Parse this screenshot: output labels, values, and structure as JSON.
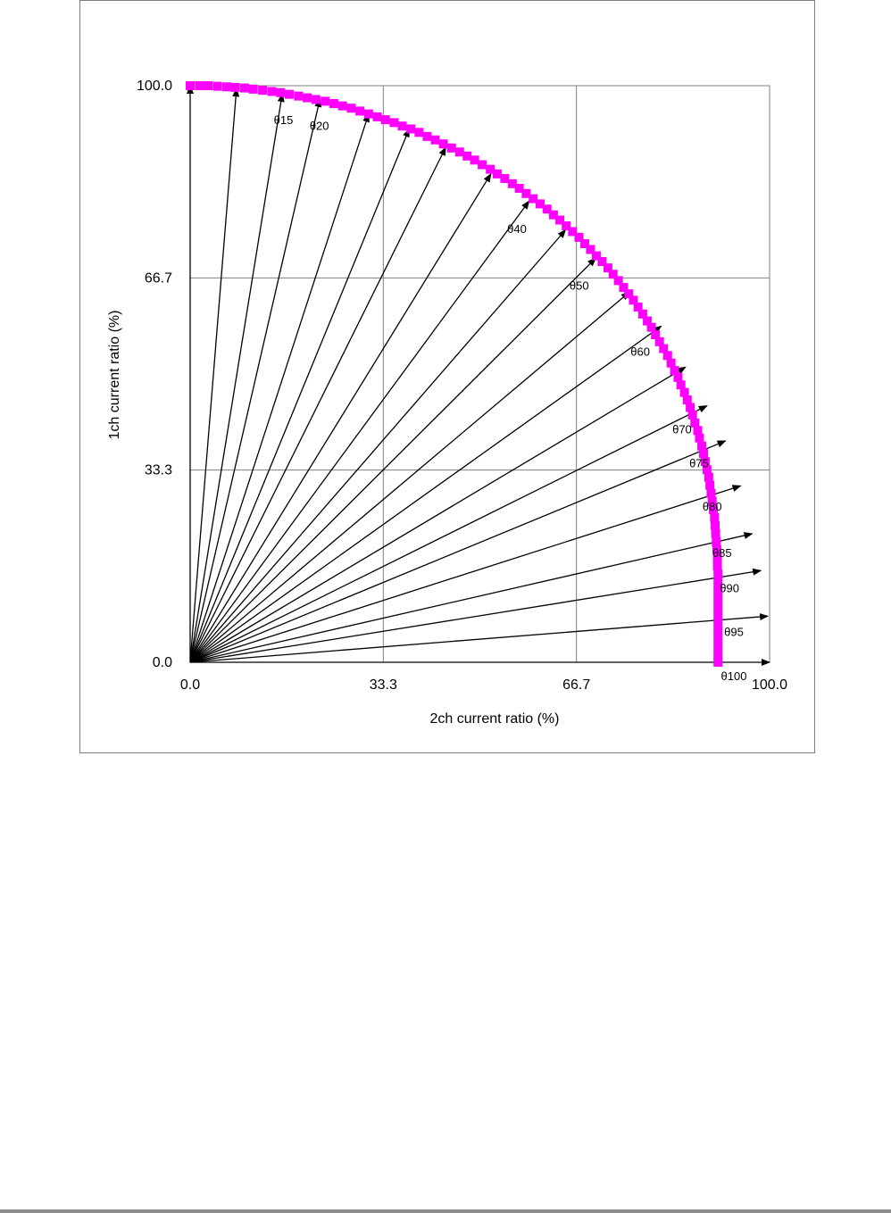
{
  "chart_data": {
    "type": "scatter",
    "xlabel": "2ch current ratio (%)",
    "ylabel": "1ch current ratio (%)",
    "xlim": [
      0,
      100
    ],
    "ylim": [
      0,
      100
    ],
    "xticks": [
      "0.0",
      "33.3",
      "66.7",
      "100.0"
    ],
    "yticks": [
      "0.0",
      "33.3",
      "66.7",
      "100.0"
    ],
    "grid": true,
    "marker_color": "#ff00ff",
    "arrow_color": "#000000",
    "series": [
      {
        "values": [
          [
            0.0,
            100.0
          ],
          [
            1.6,
            100.0
          ],
          [
            3.1,
            100.0
          ],
          [
            4.7,
            99.9
          ],
          [
            6.3,
            99.8
          ],
          [
            7.8,
            99.7
          ],
          [
            9.4,
            99.6
          ],
          [
            10.9,
            99.4
          ],
          [
            12.5,
            99.2
          ],
          [
            14.1,
            99.0
          ],
          [
            15.6,
            98.8
          ],
          [
            17.1,
            98.5
          ],
          [
            18.7,
            98.2
          ],
          [
            20.2,
            97.9
          ],
          [
            21.7,
            97.6
          ],
          [
            23.3,
            97.3
          ],
          [
            24.8,
            96.9
          ],
          [
            26.3,
            96.5
          ],
          [
            27.8,
            96.1
          ],
          [
            29.3,
            95.6
          ],
          [
            30.8,
            95.1
          ],
          [
            32.3,
            94.6
          ],
          [
            33.7,
            94.1
          ],
          [
            35.2,
            93.6
          ],
          [
            36.6,
            93.0
          ],
          [
            38.1,
            92.5
          ],
          [
            39.5,
            91.9
          ],
          [
            40.9,
            91.2
          ],
          [
            42.3,
            90.6
          ],
          [
            43.7,
            89.9
          ],
          [
            45.1,
            89.2
          ],
          [
            46.5,
            88.5
          ],
          [
            47.8,
            87.8
          ],
          [
            49.1,
            87.1
          ],
          [
            50.4,
            86.3
          ],
          [
            51.8,
            85.5
          ],
          [
            53.0,
            84.7
          ],
          [
            54.3,
            83.9
          ],
          [
            55.6,
            83.0
          ],
          [
            56.8,
            82.2
          ],
          [
            58.0,
            81.3
          ],
          [
            59.2,
            80.4
          ],
          [
            60.4,
            79.5
          ],
          [
            61.6,
            78.6
          ],
          [
            62.7,
            77.6
          ],
          [
            63.8,
            76.7
          ],
          [
            64.9,
            75.7
          ],
          [
            66.0,
            74.7
          ],
          [
            67.1,
            73.7
          ],
          [
            68.1,
            72.6
          ],
          [
            69.1,
            71.6
          ],
          [
            70.1,
            70.5
          ],
          [
            71.1,
            69.5
          ],
          [
            72.1,
            68.4
          ],
          [
            73.0,
            67.3
          ],
          [
            73.9,
            66.2
          ],
          [
            74.8,
            65.0
          ],
          [
            75.7,
            63.9
          ],
          [
            76.5,
            62.8
          ],
          [
            77.3,
            61.6
          ],
          [
            78.1,
            60.4
          ],
          [
            78.9,
            59.2
          ],
          [
            79.6,
            58.1
          ],
          [
            80.3,
            56.8
          ],
          [
            81.0,
            55.6
          ],
          [
            81.7,
            54.4
          ],
          [
            82.4,
            53.2
          ],
          [
            83.0,
            51.9
          ],
          [
            83.6,
            50.6
          ],
          [
            84.2,
            49.4
          ],
          [
            84.7,
            48.1
          ],
          [
            85.3,
            46.8
          ],
          [
            85.8,
            45.5
          ],
          [
            86.3,
            44.2
          ],
          [
            86.7,
            42.9
          ],
          [
            87.1,
            41.5
          ],
          [
            87.6,
            40.2
          ],
          [
            87.9,
            38.9
          ],
          [
            88.3,
            37.5
          ],
          [
            88.6,
            36.2
          ],
          [
            88.9,
            34.8
          ],
          [
            89.2,
            33.4
          ],
          [
            89.5,
            32.1
          ],
          [
            89.7,
            30.7
          ],
          [
            89.9,
            29.3
          ],
          [
            90.1,
            27.9
          ],
          [
            90.3,
            26.5
          ],
          [
            90.5,
            25.1
          ],
          [
            90.6,
            23.7
          ],
          [
            90.7,
            22.3
          ],
          [
            90.8,
            20.9
          ],
          [
            90.9,
            19.5
          ],
          [
            91.0,
            18.1
          ],
          [
            91.0,
            16.7
          ],
          [
            91.1,
            15.3
          ],
          [
            91.1,
            13.9
          ],
          [
            91.1,
            12.5
          ],
          [
            91.1,
            11.1
          ],
          [
            91.1,
            9.7
          ],
          [
            91.1,
            8.3
          ],
          [
            91.1,
            6.9
          ],
          [
            91.1,
            5.5
          ],
          [
            91.1,
            4.1
          ],
          [
            91.1,
            2.7
          ],
          [
            91.1,
            1.3
          ],
          [
            91.1,
            0.0
          ]
        ]
      }
    ],
    "arrows": [
      {
        "x": 0.0,
        "y": 100.0,
        "label": ""
      },
      {
        "x": 8.0,
        "y": 99.5,
        "label": ""
      },
      {
        "x": 15.9,
        "y": 98.6,
        "label": "θ15"
      },
      {
        "x": 22.4,
        "y": 97.7,
        "label": "θ20"
      },
      {
        "x": 30.8,
        "y": 95.1,
        "label": ""
      },
      {
        "x": 37.8,
        "y": 92.5,
        "label": ""
      },
      {
        "x": 44.1,
        "y": 89.3,
        "label": ""
      },
      {
        "x": 51.9,
        "y": 84.7,
        "label": ""
      },
      {
        "x": 58.5,
        "y": 80.0,
        "label": "θ40"
      },
      {
        "x": 64.8,
        "y": 75.0,
        "label": ""
      },
      {
        "x": 70.0,
        "y": 70.1,
        "label": "θ50"
      },
      {
        "x": 75.8,
        "y": 64.2,
        "label": ""
      },
      {
        "x": 81.3,
        "y": 58.3,
        "label": "θ60"
      },
      {
        "x": 85.5,
        "y": 51.2,
        "label": ""
      },
      {
        "x": 89.2,
        "y": 44.5,
        "label": "θ70"
      },
      {
        "x": 92.4,
        "y": 38.4,
        "label": "θ75"
      },
      {
        "x": 95.0,
        "y": 30.6,
        "label": "θ80"
      },
      {
        "x": 97.0,
        "y": 22.3,
        "label": "θ85"
      },
      {
        "x": 98.5,
        "y": 15.9,
        "label": "θ90"
      },
      {
        "x": 99.7,
        "y": 8.0,
        "label": "θ95"
      },
      {
        "x": 100.0,
        "y": 0.0,
        "label": "θ100"
      }
    ]
  }
}
